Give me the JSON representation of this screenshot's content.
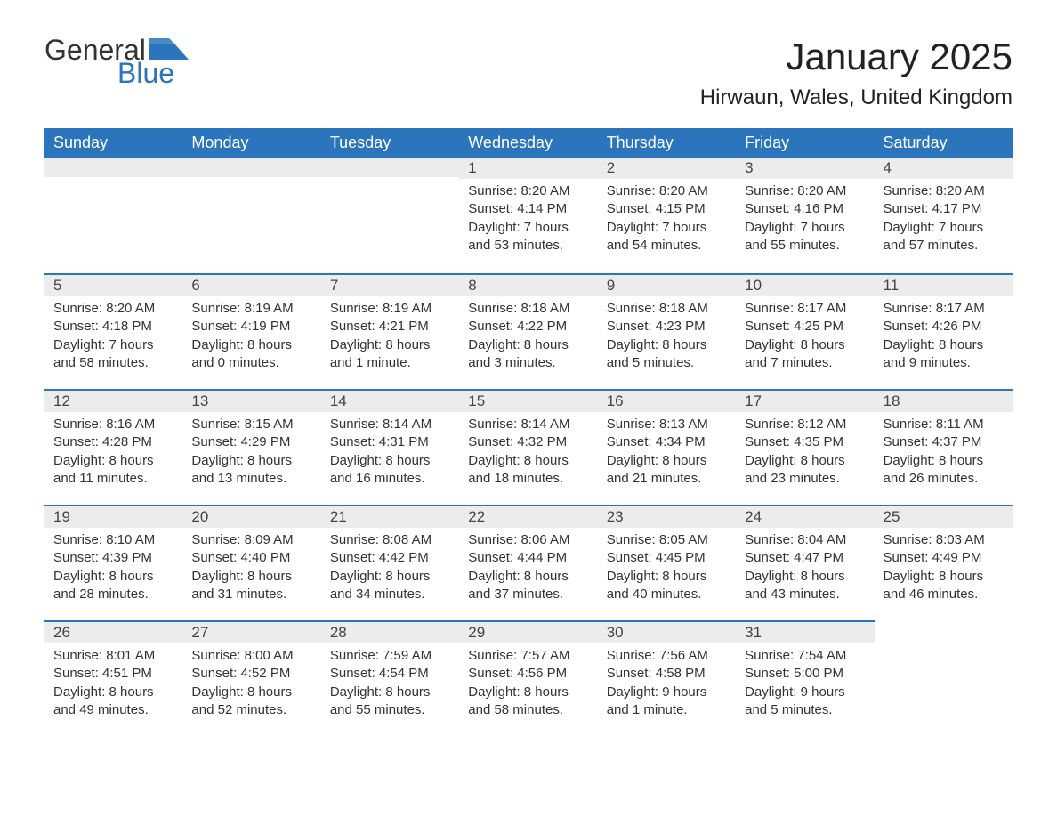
{
  "logo": {
    "part1": "General",
    "part2": "Blue",
    "color_primary": "#2a75bb",
    "color_text": "#333333"
  },
  "title": "January 2025",
  "location": "Hirwaun, Wales, United Kingdom",
  "colors": {
    "header_bg": "#2a75bb",
    "header_fg": "#ffffff",
    "daynum_bg": "#ececec",
    "row_divider": "#2a75bb",
    "body_text": "#333333",
    "page_bg": "#ffffff"
  },
  "fonts": {
    "title_size_pt": 42,
    "location_size_pt": 24,
    "header_size_pt": 18,
    "body_size_pt": 15
  },
  "day_headers": [
    "Sunday",
    "Monday",
    "Tuesday",
    "Wednesday",
    "Thursday",
    "Friday",
    "Saturday"
  ],
  "weeks": [
    [
      null,
      null,
      null,
      {
        "n": "1",
        "sunrise": "8:20 AM",
        "sunset": "4:14 PM",
        "daylight": "7 hours and 53 minutes."
      },
      {
        "n": "2",
        "sunrise": "8:20 AM",
        "sunset": "4:15 PM",
        "daylight": "7 hours and 54 minutes."
      },
      {
        "n": "3",
        "sunrise": "8:20 AM",
        "sunset": "4:16 PM",
        "daylight": "7 hours and 55 minutes."
      },
      {
        "n": "4",
        "sunrise": "8:20 AM",
        "sunset": "4:17 PM",
        "daylight": "7 hours and 57 minutes."
      }
    ],
    [
      {
        "n": "5",
        "sunrise": "8:20 AM",
        "sunset": "4:18 PM",
        "daylight": "7 hours and 58 minutes."
      },
      {
        "n": "6",
        "sunrise": "8:19 AM",
        "sunset": "4:19 PM",
        "daylight": "8 hours and 0 minutes."
      },
      {
        "n": "7",
        "sunrise": "8:19 AM",
        "sunset": "4:21 PM",
        "daylight": "8 hours and 1 minute."
      },
      {
        "n": "8",
        "sunrise": "8:18 AM",
        "sunset": "4:22 PM",
        "daylight": "8 hours and 3 minutes."
      },
      {
        "n": "9",
        "sunrise": "8:18 AM",
        "sunset": "4:23 PM",
        "daylight": "8 hours and 5 minutes."
      },
      {
        "n": "10",
        "sunrise": "8:17 AM",
        "sunset": "4:25 PM",
        "daylight": "8 hours and 7 minutes."
      },
      {
        "n": "11",
        "sunrise": "8:17 AM",
        "sunset": "4:26 PM",
        "daylight": "8 hours and 9 minutes."
      }
    ],
    [
      {
        "n": "12",
        "sunrise": "8:16 AM",
        "sunset": "4:28 PM",
        "daylight": "8 hours and 11 minutes."
      },
      {
        "n": "13",
        "sunrise": "8:15 AM",
        "sunset": "4:29 PM",
        "daylight": "8 hours and 13 minutes."
      },
      {
        "n": "14",
        "sunrise": "8:14 AM",
        "sunset": "4:31 PM",
        "daylight": "8 hours and 16 minutes."
      },
      {
        "n": "15",
        "sunrise": "8:14 AM",
        "sunset": "4:32 PM",
        "daylight": "8 hours and 18 minutes."
      },
      {
        "n": "16",
        "sunrise": "8:13 AM",
        "sunset": "4:34 PM",
        "daylight": "8 hours and 21 minutes."
      },
      {
        "n": "17",
        "sunrise": "8:12 AM",
        "sunset": "4:35 PM",
        "daylight": "8 hours and 23 minutes."
      },
      {
        "n": "18",
        "sunrise": "8:11 AM",
        "sunset": "4:37 PM",
        "daylight": "8 hours and 26 minutes."
      }
    ],
    [
      {
        "n": "19",
        "sunrise": "8:10 AM",
        "sunset": "4:39 PM",
        "daylight": "8 hours and 28 minutes."
      },
      {
        "n": "20",
        "sunrise": "8:09 AM",
        "sunset": "4:40 PM",
        "daylight": "8 hours and 31 minutes."
      },
      {
        "n": "21",
        "sunrise": "8:08 AM",
        "sunset": "4:42 PM",
        "daylight": "8 hours and 34 minutes."
      },
      {
        "n": "22",
        "sunrise": "8:06 AM",
        "sunset": "4:44 PM",
        "daylight": "8 hours and 37 minutes."
      },
      {
        "n": "23",
        "sunrise": "8:05 AM",
        "sunset": "4:45 PM",
        "daylight": "8 hours and 40 minutes."
      },
      {
        "n": "24",
        "sunrise": "8:04 AM",
        "sunset": "4:47 PM",
        "daylight": "8 hours and 43 minutes."
      },
      {
        "n": "25",
        "sunrise": "8:03 AM",
        "sunset": "4:49 PM",
        "daylight": "8 hours and 46 minutes."
      }
    ],
    [
      {
        "n": "26",
        "sunrise": "8:01 AM",
        "sunset": "4:51 PM",
        "daylight": "8 hours and 49 minutes."
      },
      {
        "n": "27",
        "sunrise": "8:00 AM",
        "sunset": "4:52 PM",
        "daylight": "8 hours and 52 minutes."
      },
      {
        "n": "28",
        "sunrise": "7:59 AM",
        "sunset": "4:54 PM",
        "daylight": "8 hours and 55 minutes."
      },
      {
        "n": "29",
        "sunrise": "7:57 AM",
        "sunset": "4:56 PM",
        "daylight": "8 hours and 58 minutes."
      },
      {
        "n": "30",
        "sunrise": "7:56 AM",
        "sunset": "4:58 PM",
        "daylight": "9 hours and 1 minute."
      },
      {
        "n": "31",
        "sunrise": "7:54 AM",
        "sunset": "5:00 PM",
        "daylight": "9 hours and 5 minutes."
      },
      null
    ]
  ],
  "labels": {
    "sunrise": "Sunrise: ",
    "sunset": "Sunset: ",
    "daylight": "Daylight: "
  }
}
